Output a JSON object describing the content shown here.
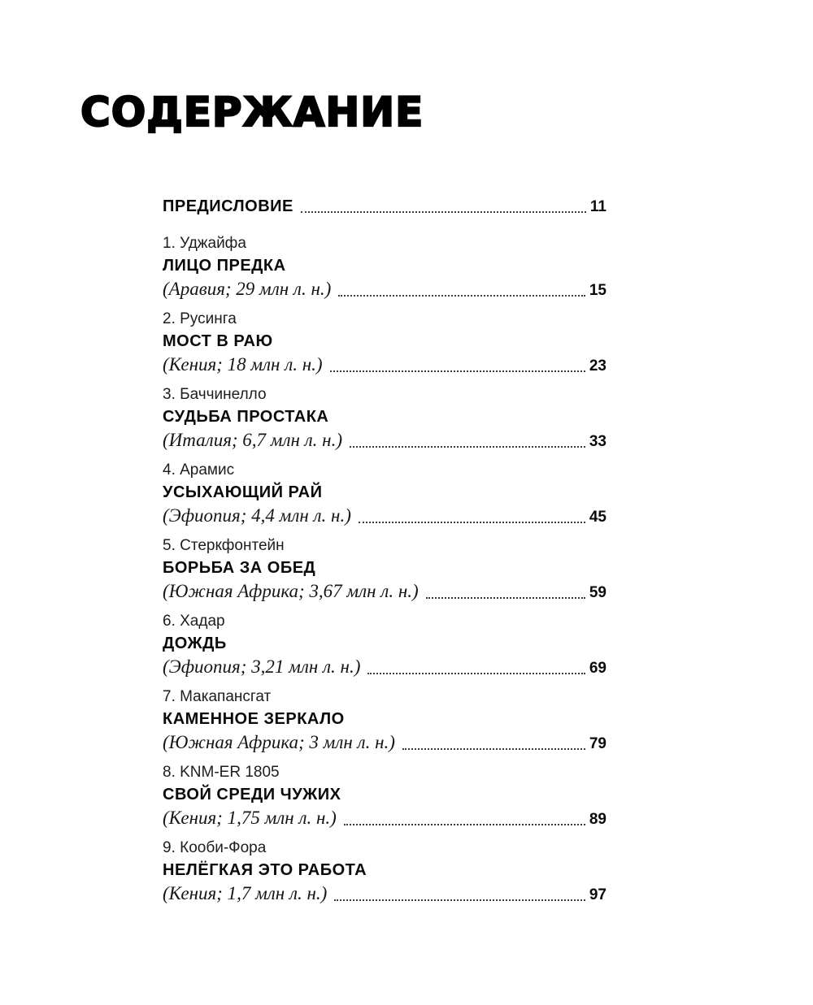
{
  "page": {
    "title": "СОДЕРЖАНИЕ"
  },
  "toc": {
    "preface": {
      "label": "ПРЕДИСЛОВИЕ",
      "page": "11"
    },
    "entries": [
      {
        "number_line": "1. Уджайфа",
        "title": "ЛИЦО ПРЕДКА",
        "subtitle": "(Аравия; 29 млн л. н.)",
        "page": "15"
      },
      {
        "number_line": "2. Русинга",
        "title": "МОСТ В РАЮ",
        "subtitle": "(Кения; 18 млн л. н.)",
        "page": "23"
      },
      {
        "number_line": "3. Баччинелло",
        "title": "СУДЬБА ПРОСТАКА",
        "subtitle": "(Италия; 6,7 млн л. н.)",
        "page": "33"
      },
      {
        "number_line": "4. Арамис",
        "title": "УСЫХАЮЩИЙ РАЙ",
        "subtitle": "(Эфиопия; 4,4 млн л. н.)",
        "page": "45"
      },
      {
        "number_line": "5. Стеркфонтейн",
        "title": "БОРЬБА ЗА ОБЕД",
        "subtitle": "(Южная Африка; 3,67 млн л. н.)",
        "page": "59"
      },
      {
        "number_line": "6. Хадар",
        "title": "ДОЖДЬ",
        "subtitle": "(Эфиопия; 3,21 млн л. н.)",
        "page": "69"
      },
      {
        "number_line": "7. Макапансгат",
        "title": "КАМЕННОЕ ЗЕРКАЛО",
        "subtitle": "(Южная Африка; 3 млн л. н.)",
        "page": "79"
      },
      {
        "number_line": "8. KNM-ER 1805",
        "title": "СВОЙ СРЕДИ ЧУЖИХ",
        "subtitle": "(Кения; 1,75 млн л. н.)",
        "page": "89"
      },
      {
        "number_line": "9. Кооби-Фора",
        "title": "НЕЛЁГКАЯ ЭТО РАБОТА",
        "subtitle": "(Кения; 1,7 млн л. н.)",
        "page": "97"
      }
    ]
  }
}
